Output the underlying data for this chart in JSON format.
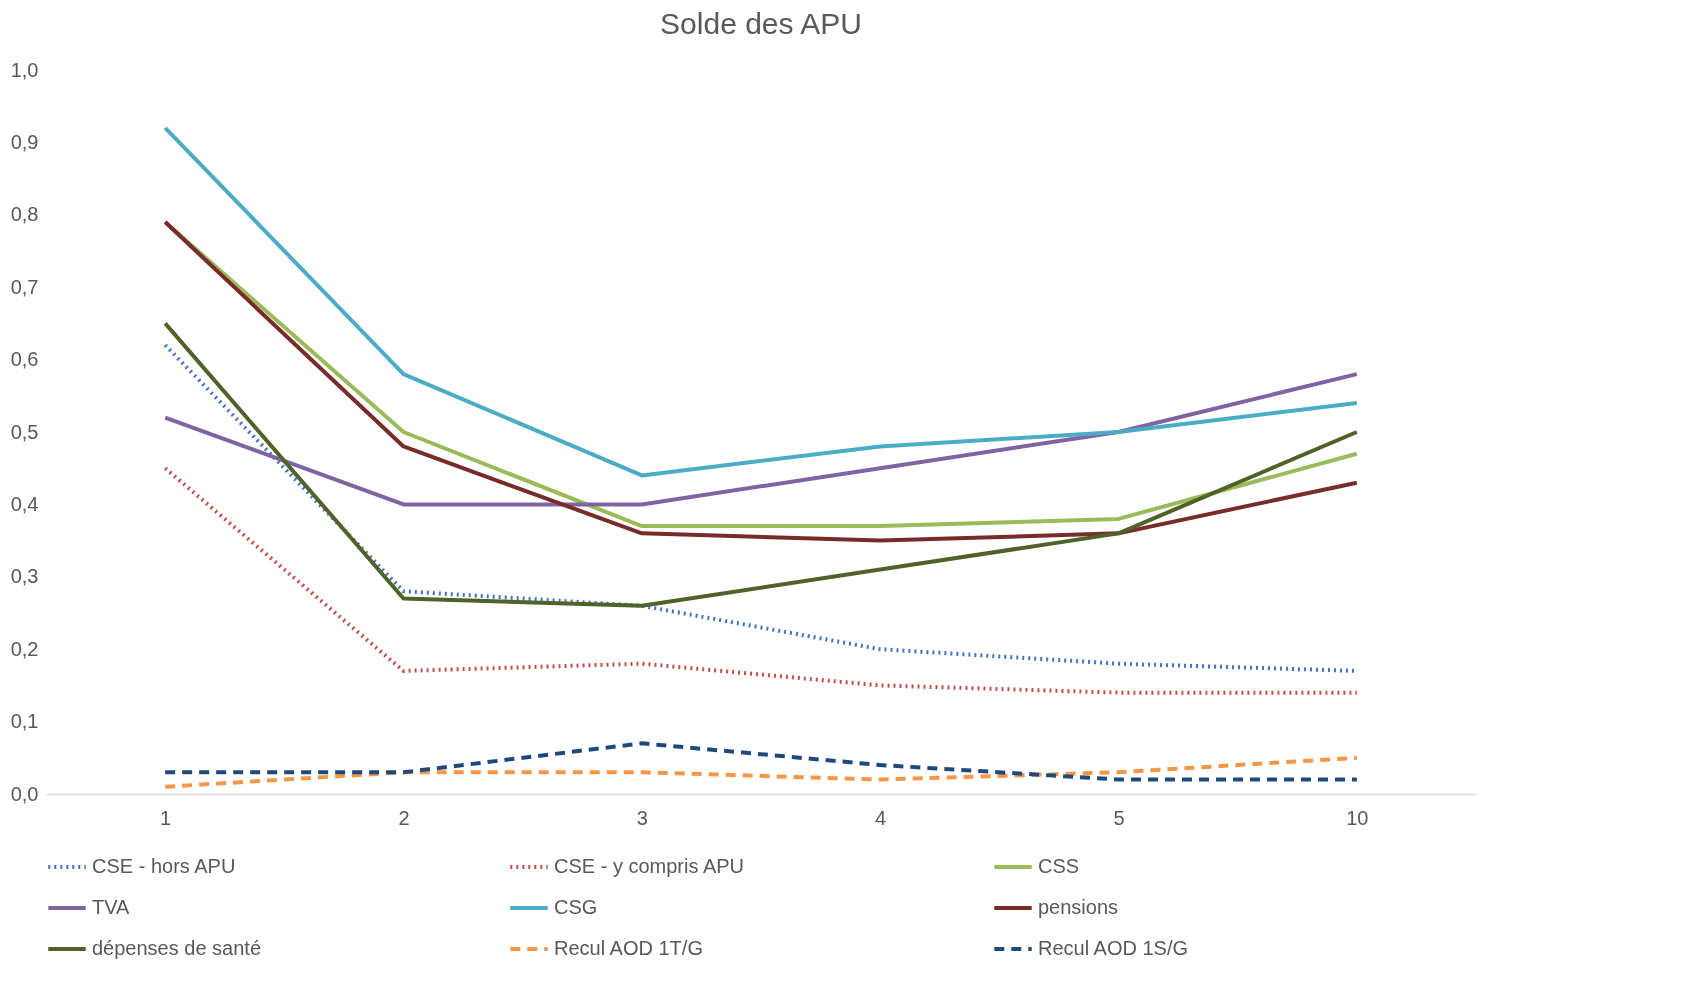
{
  "chart_data": {
    "type": "line",
    "title": "Solde des APU",
    "categories": [
      "1",
      "2",
      "3",
      "4",
      "5",
      "10"
    ],
    "ylim": [
      0,
      1
    ],
    "yticks": [
      {
        "value": 0,
        "label": "0,0"
      },
      {
        "value": 0.1,
        "label": "0,1"
      },
      {
        "value": 0.2,
        "label": "0,2"
      },
      {
        "value": 0.3,
        "label": "0,3"
      },
      {
        "value": 0.4,
        "label": "0,4"
      },
      {
        "value": 0.5,
        "label": "0,5"
      },
      {
        "value": 0.6,
        "label": "0,6"
      },
      {
        "value": 0.7,
        "label": "0,7"
      },
      {
        "value": 0.8,
        "label": "0,8"
      },
      {
        "value": 0.9,
        "label": "0,9"
      },
      {
        "value": 1,
        "label": "1,0"
      }
    ],
    "grid": false,
    "legend": "bottom",
    "marker": "none",
    "series": [
      {
        "name": "CSE - hors APU",
        "color": "#4472c4",
        "line_style": "dotted",
        "values": [
          0.62,
          0.28,
          0.26,
          0.2,
          0.18,
          0.17
        ]
      },
      {
        "name": "CSE - y compris APU",
        "color": "#c0504d",
        "line_style": "dotted",
        "values": [
          0.45,
          0.17,
          0.18,
          0.15,
          0.14,
          0.14
        ]
      },
      {
        "name": "CSS",
        "color": "#9bbb59",
        "line_style": "solid",
        "values": [
          0.79,
          0.5,
          0.37,
          0.37,
          0.38,
          0.47
        ]
      },
      {
        "name": "TVA",
        "color": "#8064a2",
        "line_style": "solid",
        "values": [
          0.52,
          0.4,
          0.4,
          0.45,
          0.5,
          0.58
        ]
      },
      {
        "name": "CSG",
        "color": "#4bacc6",
        "line_style": "solid",
        "values": [
          0.92,
          0.58,
          0.44,
          0.48,
          0.5,
          0.54
        ]
      },
      {
        "name": "pensions",
        "color": "#772c2a",
        "line_style": "solid",
        "values": [
          0.79,
          0.48,
          0.36,
          0.35,
          0.36,
          0.43
        ]
      },
      {
        "name": "dépenses de santé",
        "color": "#4f6228",
        "line_style": "solid",
        "values": [
          0.65,
          0.27,
          0.26,
          0.31,
          0.36,
          0.5
        ]
      },
      {
        "name": "Recul AOD 1T/G",
        "color": "#f79646",
        "line_style": "dashed",
        "values": [
          0.01,
          0.03,
          0.03,
          0.02,
          0.03,
          0.05
        ]
      },
      {
        "name": "Recul AOD 1S/G",
        "color": "#1f497d",
        "line_style": "dashed",
        "values": [
          0.03,
          0.03,
          0.07,
          0.04,
          0.02,
          0.02
        ]
      }
    ]
  }
}
